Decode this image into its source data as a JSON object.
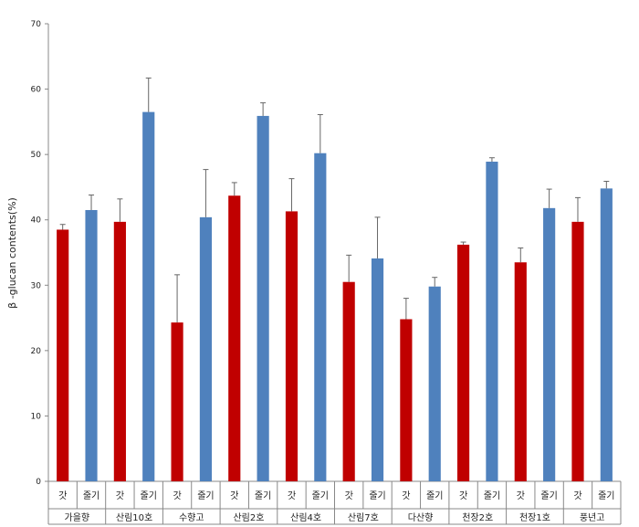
{
  "chart_data": {
    "type": "bar",
    "title": "",
    "xlabel": "",
    "ylabel": "β -glucan contents(%)",
    "ylim": [
      0,
      70
    ],
    "yticks": [
      0,
      10,
      20,
      30,
      40,
      50,
      60,
      70
    ],
    "grid": false,
    "legend": "none",
    "groups": [
      "가을향",
      "산림10호",
      "수향고",
      "산림2호",
      "산림4호",
      "산림7호",
      "다산향",
      "천장2호",
      "천장1호",
      "풍년고"
    ],
    "subcategories": [
      "갓",
      "줄기"
    ],
    "series": [
      {
        "label": "갓",
        "color": "#c00000",
        "values": [
          38.5,
          39.7,
          24.3,
          43.7,
          41.3,
          30.5,
          24.8,
          36.2,
          33.5,
          39.7
        ],
        "errors": [
          0.8,
          3.5,
          7.3,
          2.0,
          5.0,
          4.1,
          3.2,
          0.4,
          2.2,
          3.7
        ]
      },
      {
        "label": "줄기",
        "color": "#4f81bd",
        "values": [
          41.5,
          56.5,
          40.4,
          55.9,
          50.2,
          34.1,
          29.8,
          48.9,
          41.8,
          44.8
        ],
        "errors": [
          2.3,
          5.2,
          7.3,
          2.0,
          5.9,
          6.3,
          1.4,
          0.6,
          2.9,
          1.1
        ]
      }
    ]
  }
}
